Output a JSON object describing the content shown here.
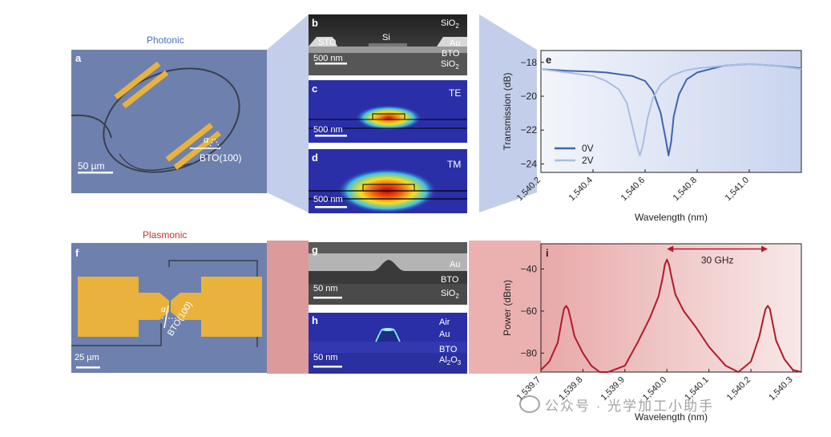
{
  "photonic_title": "Photonic",
  "plasmonic_title": "Plasmonic",
  "panels": {
    "a": {
      "label": "a",
      "scale_bar": "50 µm",
      "material": "BTO(100)",
      "angle": "α"
    },
    "b": {
      "label": "b",
      "sto": "STO",
      "si": "Si",
      "sio2_top": "SiO",
      "au": "Au",
      "bto": "BTO",
      "sio2_bottom": "SiO",
      "sub": "2",
      "scale_bar": "500 nm"
    },
    "c": {
      "label": "c",
      "mode": "TE",
      "scale_bar": "500 nm"
    },
    "d": {
      "label": "d",
      "mode": "TM",
      "scale_bar": "500 nm"
    },
    "f": {
      "label": "f",
      "scale_bar": "25 µm",
      "material": "BTO(100)",
      "angle": "α"
    },
    "g": {
      "label": "g",
      "au": "Au",
      "bto": "BTO",
      "sio2": "SiO",
      "sub": "2",
      "scale_bar": "50 nm"
    },
    "h": {
      "label": "h",
      "air": "Air",
      "au": "Au",
      "bto": "BTO",
      "al2o3_a": "Al",
      "al2o3_sub1": "2",
      "al2o3_b": "O",
      "al2o3_sub2": "3",
      "scale_bar": "50 nm"
    }
  },
  "watermark": "公众号 · 光学加工小助手",
  "colors": {
    "photonic_title": "#4a6fc0",
    "plasmonic_title": "#c0352f",
    "series_0v": "#3d64ad",
    "series_2v": "#a9bde3",
    "spectrum_line": "#b01a2a",
    "gold": "#e8b23c"
  },
  "chart_data": [
    {
      "panel": "e",
      "type": "line",
      "label": "e",
      "xlabel": "Wavelength (nm)",
      "ylabel": "Transmission (dB)",
      "xlim": [
        1540.2,
        1541.2
      ],
      "ylim": [
        -24.5,
        -17.3
      ],
      "xticks": [
        1540.2,
        1540.4,
        1540.6,
        1540.8,
        1541.0
      ],
      "xtick_labels": [
        "1,540.2",
        "1,540.4",
        "1,540.6",
        "1,540.8",
        "1,541.0"
      ],
      "yticks": [
        -18,
        -20,
        -22,
        -24
      ],
      "ytick_labels": [
        "−18",
        "−20",
        "−22",
        "−24"
      ],
      "legend": {
        "position": "bottom-left",
        "entries": [
          "0V",
          "2V"
        ]
      },
      "series": [
        {
          "name": "0V",
          "x": [
            1540.2,
            1540.3,
            1540.4,
            1540.45,
            1540.5,
            1540.55,
            1540.6,
            1540.63,
            1540.66,
            1540.68,
            1540.69,
            1540.7,
            1540.71,
            1540.73,
            1540.76,
            1540.8,
            1540.85,
            1540.9,
            1541.0,
            1541.1,
            1541.2
          ],
          "y": [
            -18.4,
            -18.5,
            -18.55,
            -18.6,
            -18.7,
            -18.8,
            -19.1,
            -19.7,
            -21.0,
            -22.6,
            -23.5,
            -22.7,
            -21.2,
            -19.9,
            -19.0,
            -18.6,
            -18.4,
            -18.2,
            -18.1,
            -18.2,
            -18.35
          ]
        },
        {
          "name": "2V",
          "x": [
            1540.2,
            1540.3,
            1540.4,
            1540.45,
            1540.5,
            1540.53,
            1540.55,
            1540.57,
            1540.58,
            1540.59,
            1540.61,
            1540.63,
            1540.66,
            1540.7,
            1540.75,
            1540.8,
            1540.9,
            1541.0,
            1541.1,
            1541.2
          ],
          "y": [
            -18.4,
            -18.6,
            -18.8,
            -19.1,
            -19.6,
            -20.4,
            -21.7,
            -23.0,
            -23.5,
            -23.0,
            -21.3,
            -20.1,
            -19.3,
            -18.8,
            -18.5,
            -18.35,
            -18.2,
            -18.1,
            -18.2,
            -18.4
          ]
        }
      ]
    },
    {
      "panel": "i",
      "type": "line",
      "label": "i",
      "xlabel": "Wavelength (nm)",
      "ylabel": "Power (dBm)",
      "xlim": [
        1539.7,
        1540.32
      ],
      "ylim": [
        -89,
        -28
      ],
      "xticks": [
        1539.7,
        1539.8,
        1539.9,
        1540.0,
        1540.1,
        1540.2,
        1540.3
      ],
      "xtick_labels": [
        "1,539.7",
        "1,539.8",
        "1,539.9",
        "1,540.0",
        "1,540.1",
        "1,540.2",
        "1,540.3"
      ],
      "yticks": [
        -40,
        -60,
        -80
      ],
      "ytick_labels": [
        "−40",
        "−60",
        "−80"
      ],
      "annotation": {
        "text": "30 GHz",
        "from": 1540.0,
        "to": 1540.24,
        "y": -32
      },
      "series": [
        {
          "name": "spectrum",
          "x": [
            1539.7,
            1539.72,
            1539.74,
            1539.75,
            1539.755,
            1539.76,
            1539.765,
            1539.77,
            1539.78,
            1539.8,
            1539.82,
            1539.84,
            1539.86,
            1539.9,
            1539.93,
            1539.96,
            1539.98,
            1539.99,
            1539.995,
            1540.0,
            1540.005,
            1540.01,
            1540.02,
            1540.04,
            1540.07,
            1540.1,
            1540.14,
            1540.17,
            1540.2,
            1540.22,
            1540.23,
            1540.235,
            1540.24,
            1540.245,
            1540.25,
            1540.26,
            1540.28,
            1540.3,
            1540.32
          ],
          "y": [
            -88,
            -84,
            -75,
            -64,
            -59,
            -57.5,
            -59,
            -63,
            -72,
            -80,
            -86,
            -89,
            -89,
            -86,
            -75,
            -63,
            -53,
            -44,
            -38,
            -35.5,
            -38,
            -43,
            -52,
            -60,
            -68,
            -77,
            -86,
            -89,
            -84,
            -72,
            -63,
            -59,
            -57.5,
            -59,
            -64,
            -74,
            -83,
            -88,
            -89
          ]
        }
      ]
    }
  ]
}
